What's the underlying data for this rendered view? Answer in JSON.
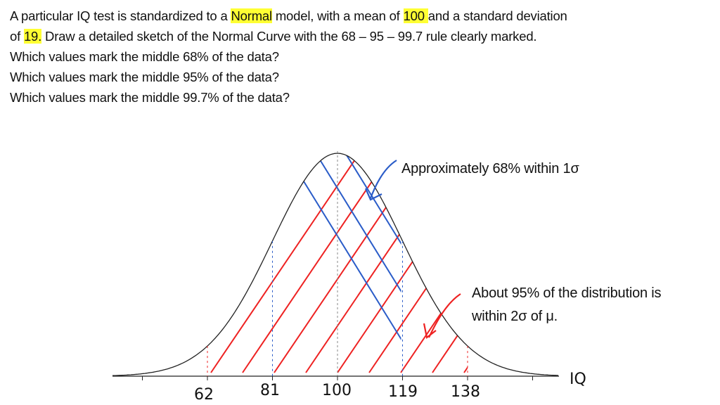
{
  "question": {
    "line1_a": "A particular IQ test is standardized to a ",
    "line1_hl1": "Normal",
    "line1_b": " model, with a mean of ",
    "line1_hl2": "100 ",
    "line1_c": "and a standard deviation",
    "line2_a": "of ",
    "line2_hl": "19.",
    "line2_b": " Draw a detailed sketch of the Normal Curve with the 68 – 95 – 99.7 rule clearly marked.",
    "line3": "Which values mark the middle 68% of the data?",
    "line4": "Which values mark the middle 95% of the data?",
    "line5": "Which values mark the middle 99.7% of the data?"
  },
  "diagram": {
    "mean": 100,
    "sd": 19,
    "axis_label": "IQ",
    "tick_labels": [
      "62",
      "81",
      "100",
      "119",
      "138"
    ],
    "annotation_68": "Approximately 68% within 1σ",
    "annotation_95_line1": "About 95% of the distribution is",
    "annotation_95_line2": "within 2σ of μ.",
    "colors": {
      "highlight": "#ffff33",
      "red_hatch": "#ee2222",
      "blue_hatch": "#2a5cc8",
      "curve": "#222222"
    }
  }
}
